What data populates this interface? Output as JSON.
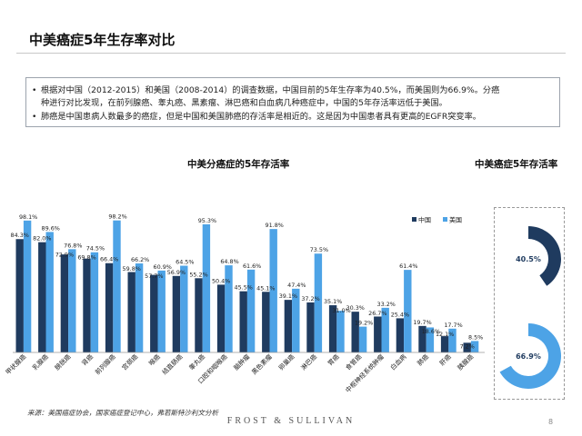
{
  "page": {
    "title": "中美癌症5年生存率对比",
    "bullets": [
      "根据对中国（2012-2015）和美国（2008-2014）的调查数据，中国目前的5年生存率为40.5%，而美国则为66.9%。分癌",
      "种进行对比发现，在前列腺癌、睾丸癌、黑素瘤、淋巴癌和白血病几种癌症中，中国的5年存活率远低于美国。",
      "肺癌是中国患病人数最多的癌症，但是中国和美国肺癌的存活率是相近的。这是因为中国患者具有更高的EGFR突变率。"
    ],
    "bullet_marker": "•",
    "source": "来源：美国癌症协会，国家癌症登记中心，弗若斯特沙利文分析",
    "brand": "FROST  &  SULLIVAN",
    "page_number": "8"
  },
  "colors": {
    "china": "#1f3b5f",
    "usa": "#4da3e6",
    "donut_track": "#ffffff"
  },
  "chart_data": [
    {
      "type": "bar",
      "title": "中美分癌症的5年存活率",
      "categories": [
        "甲状腺癌",
        "乳腺癌",
        "膀胱癌",
        "肾癌",
        "前列腺癌",
        "宫颈癌",
        "喉癌",
        "结直肠癌",
        "睾丸癌",
        "口腔和咽喉癌",
        "脑肿瘤",
        "黑色素瘤",
        "卵巢癌",
        "淋巴癌",
        "胃癌",
        "食管癌",
        "中枢神经系统肿瘤",
        "白血病",
        "肺癌",
        "肝癌",
        "胰腺癌"
      ],
      "series": [
        {
          "name": "中国",
          "values": [
            84.3,
            82.0,
            72.9,
            69.8,
            66.4,
            59.8,
            57.7,
            56.9,
            55.2,
            50.4,
            45.5,
            45.1,
            39.1,
            37.2,
            35.1,
            30.3,
            26.7,
            25.4,
            19.7,
            12.1,
            7.2
          ]
        },
        {
          "name": "美国",
          "values": [
            98.1,
            89.6,
            76.8,
            74.5,
            98.2,
            66.2,
            60.9,
            64.5,
            95.3,
            64.8,
            61.6,
            91.8,
            47.4,
            73.5,
            31.0,
            19.2,
            33.2,
            61.4,
            18.6,
            17.7,
            8.5
          ]
        }
      ],
      "ylim": [
        0,
        100
      ],
      "legend_position": "top-right",
      "grid": false
    },
    {
      "type": "pie",
      "title": "中美癌症5年存活率",
      "series": [
        {
          "name": "中国",
          "value": 40.5,
          "label": "40.5%"
        },
        {
          "name": "美国",
          "value": 66.9,
          "label": "66.9%"
        }
      ]
    }
  ]
}
